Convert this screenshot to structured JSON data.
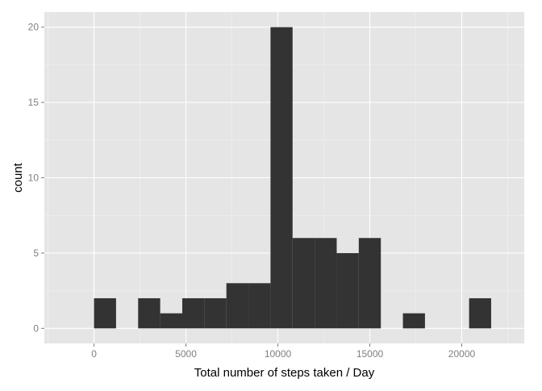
{
  "chart_data": {
    "type": "bar",
    "xlabel": "Total number of steps taken / Day",
    "ylabel": "count",
    "xlim": [
      -2700,
      23400
    ],
    "ylim": [
      -1.0,
      21.0
    ],
    "x_ticks": [
      0,
      5000,
      10000,
      15000,
      20000
    ],
    "x_tick_labels": [
      "0",
      "5000",
      "10000",
      "15000",
      "20000"
    ],
    "y_ticks": [
      0,
      5,
      10,
      15,
      20
    ],
    "y_tick_labels": [
      "0",
      "5",
      "10",
      "15",
      "20"
    ],
    "grid": true,
    "bin_width": 1200,
    "bins": [
      {
        "x0": 0,
        "x1": 1200,
        "count": 2
      },
      {
        "x0": 2400,
        "x1": 3600,
        "count": 2
      },
      {
        "x0": 3600,
        "x1": 4800,
        "count": 1
      },
      {
        "x0": 4800,
        "x1": 6000,
        "count": 2
      },
      {
        "x0": 6000,
        "x1": 7200,
        "count": 2
      },
      {
        "x0": 7200,
        "x1": 8400,
        "count": 3
      },
      {
        "x0": 8400,
        "x1": 9600,
        "count": 3
      },
      {
        "x0": 9600,
        "x1": 10800,
        "count": 20
      },
      {
        "x0": 10800,
        "x1": 12000,
        "count": 6
      },
      {
        "x0": 12000,
        "x1": 13200,
        "count": 6
      },
      {
        "x0": 13200,
        "x1": 14400,
        "count": 5
      },
      {
        "x0": 14400,
        "x1": 15600,
        "count": 6
      },
      {
        "x0": 16800,
        "x1": 18000,
        "count": 1
      },
      {
        "x0": 20400,
        "x1": 21600,
        "count": 2
      }
    ]
  },
  "colors": {
    "panel_background": "#e5e5e5",
    "grid_major": "#ffffff",
    "grid_minor": "#f2f2f2",
    "bar_fill": "#333333",
    "tick_label": "#7f7f7f",
    "tick_mark": "#7f7f7f",
    "axis_title": "#000000"
  }
}
